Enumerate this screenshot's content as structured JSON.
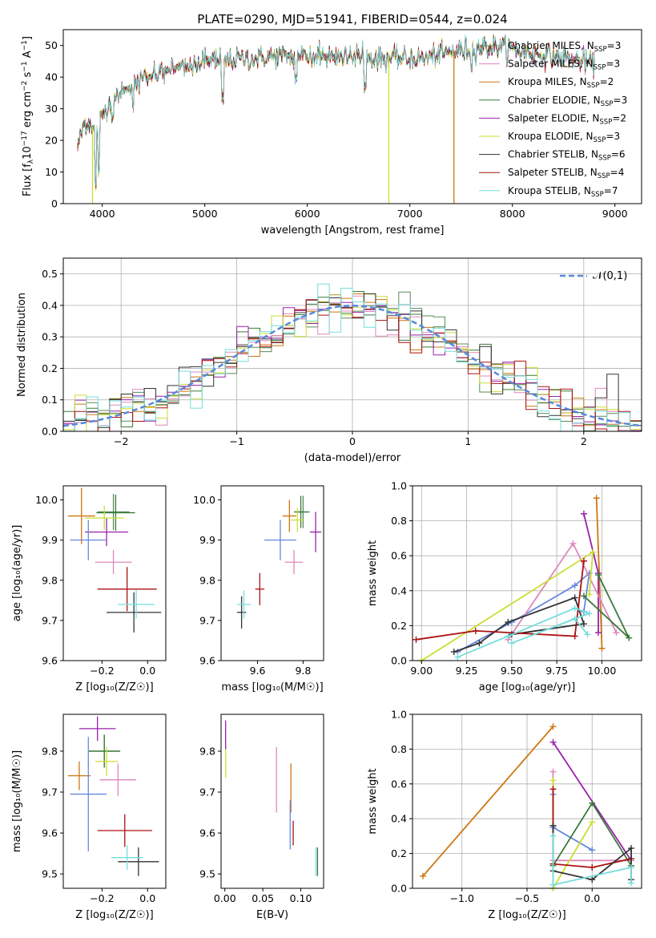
{
  "figure_title": "PLATE=0290, MJD=51941, FIBERID=0544, z=0.024",
  "models": [
    {
      "name": "Chabrier MILES",
      "nssp": "3",
      "color": "#5a8a5a"
    },
    {
      "name": "Salpeter MILES",
      "nssp": "3",
      "color": "#dd88bb"
    },
    {
      "name": "Kroupa MILES",
      "nssp": "2",
      "color": "#cc7711"
    },
    {
      "name": "Chabrier ELODIE",
      "nssp": "3",
      "color": "#3a7a3a"
    },
    {
      "name": "Salpeter ELODIE",
      "nssp": "2",
      "color": "#9922aa"
    },
    {
      "name": "Kroupa ELODIE",
      "nssp": "3",
      "color": "#ccdd33"
    },
    {
      "name": "Chabrier STELIB",
      "nssp": "6",
      "color": "#333333"
    },
    {
      "name": "Salpeter STELIB",
      "nssp": "4",
      "color": "#aa1111"
    },
    {
      "name": "Kroupa STELIB",
      "nssp": "7",
      "color": "#77dddd"
    }
  ],
  "legend_prefix": "N",
  "legend_sub": "SSP",
  "chart_data": [
    {
      "type": "line",
      "id": "spectrum",
      "xlabel": "wavelength [Angstrom, rest frame]",
      "ylabel_pre": "Flux [f",
      "ylabel_sub": "λ",
      "ylabel_mid": "10",
      "ylabel_sup": "−17",
      "ylabel_post": " erg cm",
      "ylabel_sup2": "−2",
      "ylabel_post2": " s",
      "ylabel_sup3": "−1",
      "ylabel_post3": " A",
      "ylabel_sup4": "−1",
      "ylabel_end": "]",
      "xlim": [
        3620,
        9260
      ],
      "ylim": [
        0,
        55
      ],
      "xticks": [
        4000,
        5000,
        6000,
        7000,
        8000,
        9000
      ],
      "yticks": [
        0,
        10,
        20,
        30,
        40,
        50
      ],
      "continuum": [
        [
          3760,
          18
        ],
        [
          3820,
          25
        ],
        [
          3880,
          26
        ],
        [
          3940,
          22
        ],
        [
          4000,
          28
        ],
        [
          4100,
          33
        ],
        [
          4200,
          36
        ],
        [
          4300,
          38
        ],
        [
          4500,
          41
        ],
        [
          4700,
          43
        ],
        [
          4900,
          44
        ],
        [
          5100,
          45
        ],
        [
          5300,
          45.5
        ],
        [
          5500,
          46
        ],
        [
          5700,
          46.5
        ],
        [
          5900,
          46.5
        ],
        [
          6100,
          46.5
        ],
        [
          6300,
          46.3
        ],
        [
          6500,
          46.2
        ],
        [
          6700,
          46
        ],
        [
          6900,
          46
        ],
        [
          7100,
          46
        ],
        [
          7300,
          47
        ],
        [
          7500,
          48.5
        ],
        [
          7700,
          49.5
        ],
        [
          7900,
          49.5
        ],
        [
          8100,
          48
        ],
        [
          8300,
          47
        ],
        [
          8500,
          46
        ],
        [
          8700,
          45
        ],
        [
          8800,
          44
        ]
      ],
      "x_range": [
        3760,
        8800
      ],
      "dips": [
        [
          3933,
          5
        ],
        [
          3968,
          8
        ],
        [
          4101,
          25
        ],
        [
          4300,
          30
        ],
        [
          5175,
          32
        ],
        [
          5890,
          38
        ],
        [
          6563,
          36
        ],
        [
          7600,
          41
        ]
      ],
      "drops": [
        {
          "x": 3905,
          "color": "#ccdd33"
        },
        {
          "x": 6795,
          "color": "#ccdd33"
        },
        {
          "x": 7430,
          "color": "#cc7711"
        }
      ]
    },
    {
      "type": "histogram",
      "id": "residuals",
      "xlabel": "(data-model)/error",
      "ylabel": "Normed distribution",
      "xlim": [
        -2.5,
        2.5
      ],
      "ylim": [
        0,
        0.55
      ],
      "xticks": [
        -2,
        -1,
        0,
        1,
        2
      ],
      "yticks": [
        0.0,
        0.1,
        0.2,
        0.3,
        0.4,
        0.5
      ],
      "bin_width": 0.1,
      "curve_label": "𝒩(0,1)",
      "curve_color": "#5588dd"
    },
    {
      "type": "scatter",
      "id": "age_vs_z",
      "xlabel": "Z [log₁₀(Z/Z☉)]",
      "ylabel": "age  [log₁₀(age/yr)]",
      "xlim": [
        -0.37,
        0.08
      ],
      "ylim": [
        9.6,
        10.035
      ],
      "xticks": [
        -0.2,
        0.0
      ],
      "xtick_labels": [
        "−0.2",
        "0.0"
      ],
      "yticks": [
        9.6,
        9.7,
        9.8,
        9.9,
        10.0
      ],
      "points": [
        {
          "m": 0,
          "x": -0.15,
          "y": 9.97,
          "xe": 0.07,
          "ye": 0.045
        },
        {
          "m": 1,
          "x": -0.15,
          "y": 9.845,
          "xe": 0.08,
          "ye": 0.03
        },
        {
          "m": 2,
          "x": -0.29,
          "y": 9.96,
          "xe": 0.06,
          "ye": 0.07
        },
        {
          "m": 3,
          "x": -0.14,
          "y": 9.968,
          "xe": 0.085,
          "ye": 0.045
        },
        {
          "m": 4,
          "x": -0.18,
          "y": 9.92,
          "xe": 0.095,
          "ye": 0.035
        },
        {
          "m": 5,
          "x": -0.19,
          "y": 9.955,
          "xe": 0.085,
          "ye": 0.03
        },
        {
          "m": 6,
          "x": -0.06,
          "y": 9.72,
          "xe": 0.12,
          "ye": 0.05
        },
        {
          "m": 7,
          "x": -0.09,
          "y": 9.778,
          "xe": 0.13,
          "ye": 0.055
        },
        {
          "m": 8,
          "x": -0.05,
          "y": 9.74,
          "xe": 0.08,
          "ye": 0.035
        },
        {
          "m": 9,
          "x": -0.26,
          "y": 9.9,
          "xe": 0.08,
          "ye": 0.05,
          "c": "#6688dd"
        }
      ]
    },
    {
      "type": "scatter",
      "id": "age_vs_mass",
      "xlabel": "mass [log₁₀(M/M☉)]",
      "xlim": [
        9.44,
        9.89
      ],
      "ylim": [
        9.6,
        10.035
      ],
      "xticks": [
        9.6,
        9.8
      ],
      "yticks": [
        9.6,
        9.7,
        9.8,
        9.9,
        10.0
      ],
      "points": [
        {
          "m": 0,
          "x": 9.8,
          "y": 9.97,
          "xe": 0.03,
          "ye": 0.04
        },
        {
          "m": 1,
          "x": 9.76,
          "y": 9.845,
          "xe": 0.04,
          "ye": 0.03
        },
        {
          "m": 2,
          "x": 9.74,
          "y": 9.96,
          "xe": 0.03,
          "ye": 0.04
        },
        {
          "m": 3,
          "x": 9.79,
          "y": 9.97,
          "xe": 0.03,
          "ye": 0.04
        },
        {
          "m": 4,
          "x": 9.855,
          "y": 9.92,
          "xe": 0.025,
          "ye": 0.05
        },
        {
          "m": 5,
          "x": 9.775,
          "y": 9.95,
          "xe": 0.03,
          "ye": 0.03
        },
        {
          "m": 6,
          "x": 9.53,
          "y": 9.72,
          "xe": 0.02,
          "ye": 0.04
        },
        {
          "m": 7,
          "x": 9.61,
          "y": 9.778,
          "xe": 0.02,
          "ye": 0.04
        },
        {
          "m": 8,
          "x": 9.54,
          "y": 9.74,
          "xe": 0.03,
          "ye": 0.035
        },
        {
          "m": 9,
          "x": 9.7,
          "y": 9.9,
          "xe": 0.07,
          "ye": 0.05,
          "c": "#6688dd"
        }
      ]
    },
    {
      "type": "line",
      "id": "massweight_vs_age",
      "xlabel": "age  [log₁₀(age/yr)]",
      "ylabel": "mass weight",
      "xlim": [
        8.95,
        10.22
      ],
      "ylim": [
        0,
        1.0
      ],
      "xticks": [
        9.0,
        9.25,
        9.5,
        9.75,
        10.0
      ],
      "xtick_labels": [
        "9.00",
        "9.25",
        "9.50",
        "9.75",
        "10.00"
      ],
      "yticks": [
        0.0,
        0.2,
        0.4,
        0.6,
        0.8,
        1.0
      ],
      "series": [
        {
          "m": 9,
          "c": "#6688dd",
          "pts": [
            [
              9.2,
              0.05
            ],
            [
              9.5,
              0.22
            ],
            [
              9.85,
              0.43
            ],
            [
              9.93,
              0.5
            ],
            [
              9.9,
              0.28
            ]
          ]
        },
        {
          "m": 2,
          "pts": [
            [
              9.97,
              0.93
            ],
            [
              10.0,
              0.07
            ]
          ]
        },
        {
          "m": 4,
          "pts": [
            [
              9.9,
              0.84
            ],
            [
              9.98,
              0.5
            ],
            [
              9.98,
              0.16
            ]
          ]
        },
        {
          "m": 1,
          "pts": [
            [
              9.48,
              0.12
            ],
            [
              9.84,
              0.67
            ],
            [
              10.08,
              0.16
            ]
          ]
        },
        {
          "m": 5,
          "pts": [
            [
              9.0,
              0.0
            ],
            [
              9.95,
              0.62
            ],
            [
              9.93,
              0.38
            ]
          ]
        },
        {
          "m": 3,
          "pts": [
            [
              9.98,
              0.49
            ],
            [
              10.15,
              0.13
            ],
            [
              9.9,
              0.37
            ]
          ]
        },
        {
          "m": 6,
          "pts": [
            [
              9.18,
              0.05
            ],
            [
              9.32,
              0.1
            ],
            [
              9.48,
              0.22
            ],
            [
              9.85,
              0.36
            ],
            [
              9.9,
              0.21
            ],
            [
              9.5,
              0.15
            ]
          ]
        },
        {
          "m": 7,
          "pts": [
            [
              8.97,
              0.12
            ],
            [
              9.3,
              0.17
            ],
            [
              9.85,
              0.14
            ],
            [
              9.9,
              0.57
            ]
          ]
        },
        {
          "m": 8,
          "pts": [
            [
              9.2,
              0.02
            ],
            [
              9.48,
              0.14
            ],
            [
              9.85,
              0.3
            ],
            [
              9.93,
              0.27
            ],
            [
              9.5,
              0.1
            ],
            [
              9.85,
              0.24
            ],
            [
              9.92,
              0.15
            ]
          ]
        }
      ]
    },
    {
      "type": "scatter",
      "id": "mass_vs_z",
      "xlabel": "Z [log₁₀(Z/Z☉)]",
      "ylabel": "mass [log₁₀(M/M☉)]",
      "xlim": [
        -0.37,
        0.08
      ],
      "ylim": [
        9.465,
        9.89
      ],
      "xticks": [
        -0.2,
        0.0
      ],
      "xtick_labels": [
        "−0.2",
        "0.0"
      ],
      "yticks": [
        9.5,
        9.6,
        9.7,
        9.8
      ],
      "points": [
        {
          "m": 0,
          "x": -0.19,
          "y": 9.8,
          "xe": 0.07,
          "ye": 0.04
        },
        {
          "m": 1,
          "x": -0.13,
          "y": 9.73,
          "xe": 0.08,
          "ye": 0.04
        },
        {
          "m": 2,
          "x": -0.3,
          "y": 9.74,
          "xe": 0.05,
          "ye": 0.035
        },
        {
          "m": 3,
          "x": -0.19,
          "y": 9.8,
          "xe": 0.07,
          "ye": 0.04
        },
        {
          "m": 4,
          "x": -0.22,
          "y": 9.855,
          "xe": 0.08,
          "ye": 0.03
        },
        {
          "m": 5,
          "x": -0.18,
          "y": 9.775,
          "xe": 0.05,
          "ye": 0.035
        },
        {
          "m": 6,
          "x": -0.04,
          "y": 9.53,
          "xe": 0.09,
          "ye": 0.035
        },
        {
          "m": 7,
          "x": -0.1,
          "y": 9.606,
          "xe": 0.12,
          "ye": 0.04
        },
        {
          "m": 8,
          "x": -0.09,
          "y": 9.54,
          "xe": 0.07,
          "ye": 0.03
        },
        {
          "m": 9,
          "x": -0.26,
          "y": 9.695,
          "xe": 0.08,
          "ye": 0.14,
          "c": "#6688dd"
        }
      ]
    },
    {
      "type": "scatter",
      "id": "mass_vs_ebv",
      "xlabel": "E(B-V)",
      "xlim": [
        -0.005,
        0.13
      ],
      "ylim": [
        9.465,
        9.89
      ],
      "xticks": [
        0.0,
        0.05,
        0.1
      ],
      "xtick_labels": [
        "0.00",
        "0.05",
        "0.10"
      ],
      "yticks": [
        9.5,
        9.6,
        9.7,
        9.8
      ],
      "points": [
        {
          "m": 5,
          "x": 0.001,
          "y": 9.775,
          "xe": 0,
          "ye": 0.04
        },
        {
          "m": 4,
          "x": 0.001,
          "y": 9.84,
          "xe": 0,
          "ye": 0.035
        },
        {
          "m": 1,
          "x": 0.068,
          "y": 9.73,
          "xe": 0,
          "ye": 0.08
        },
        {
          "m": 2,
          "x": 0.087,
          "y": 9.71,
          "xe": 0,
          "ye": 0.06
        },
        {
          "m": 9,
          "x": 0.086,
          "y": 9.62,
          "xe": 0,
          "ye": 0.06,
          "c": "#6688dd"
        },
        {
          "m": 7,
          "x": 0.09,
          "y": 9.6,
          "xe": 0,
          "ye": 0.03
        },
        {
          "m": 8,
          "x": 0.12,
          "y": 9.53,
          "xe": 0,
          "ye": 0.035
        },
        {
          "m": 3,
          "x": 0.122,
          "y": 9.53,
          "xe": 0,
          "ye": 0.035
        }
      ]
    },
    {
      "type": "line",
      "id": "massweight_vs_z",
      "xlabel": "Z [log₁₀(Z/Z☉)]",
      "ylabel": "mass weight",
      "xlim": [
        -1.38,
        0.38
      ],
      "ylim": [
        0,
        1.0
      ],
      "xticks": [
        -1.0,
        -0.5,
        0.0
      ],
      "xtick_labels": [
        "−1.0",
        "−0.5",
        "0.0"
      ],
      "yticks": [
        0.0,
        0.2,
        0.4,
        0.6,
        0.8,
        1.0
      ],
      "series": [
        {
          "m": 2,
          "pts": [
            [
              -1.3,
              0.07
            ],
            [
              -0.3,
              0.93
            ]
          ]
        },
        {
          "m": 4,
          "pts": [
            [
              -0.3,
              0.84
            ],
            [
              0.3,
              0.16
            ]
          ]
        },
        {
          "m": 1,
          "pts": [
            [
              -0.3,
              0.67
            ],
            [
              -0.3,
              0.16
            ],
            [
              0.3,
              0.16
            ]
          ]
        },
        {
          "m": 9,
          "c": "#6688dd",
          "pts": [
            [
              -0.3,
              0.54
            ],
            [
              -0.3,
              0.35
            ],
            [
              0.0,
              0.22
            ]
          ]
        },
        {
          "m": 5,
          "pts": [
            [
              -0.3,
              0.62
            ],
            [
              -0.3,
              0.0
            ],
            [
              0.0,
              0.38
            ]
          ]
        },
        {
          "m": 3,
          "pts": [
            [
              -0.3,
              0.13
            ],
            [
              0.0,
              0.49
            ],
            [
              0.3,
              0.13
            ]
          ]
        },
        {
          "m": 7,
          "pts": [
            [
              -0.3,
              0.57
            ],
            [
              -0.3,
              0.14
            ],
            [
              0.0,
              0.12
            ],
            [
              0.3,
              0.17
            ]
          ]
        },
        {
          "m": 6,
          "pts": [
            [
              -0.3,
              0.36
            ],
            [
              -0.3,
              0.1
            ],
            [
              0.0,
              0.05
            ],
            [
              0.3,
              0.23
            ],
            [
              0.3,
              0.05
            ]
          ]
        },
        {
          "m": 8,
          "pts": [
            [
              -0.3,
              0.3
            ],
            [
              -0.3,
              0.02
            ],
            [
              0.3,
              0.12
            ],
            [
              0.3,
              0.03
            ]
          ]
        }
      ]
    }
  ]
}
